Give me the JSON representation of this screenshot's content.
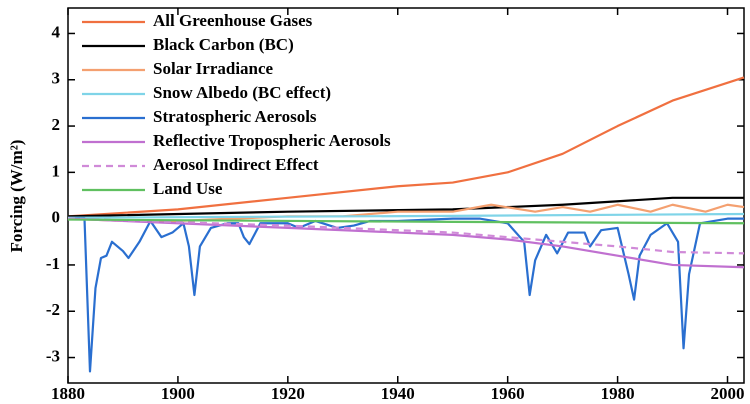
{
  "chart_data": {
    "type": "line",
    "y_label": "Forcing (W/m²)",
    "xlim": [
      1880,
      2003
    ],
    "xticks": [
      1880,
      1900,
      1920,
      1940,
      1960,
      1980,
      2000
    ],
    "ylim": [
      -3.55,
      4.55
    ],
    "yticks": [
      -3,
      -2,
      -1,
      0,
      1,
      2,
      3,
      4
    ],
    "legend": "upper left",
    "series": [
      {
        "name": "All Greenhouse Gases",
        "color": "#f07040",
        "dashed": false,
        "x": [
          1880,
          1900,
          1920,
          1940,
          1950,
          1960,
          1970,
          1980,
          1990,
          2003
        ],
        "values": [
          0.05,
          0.2,
          0.45,
          0.7,
          0.78,
          1.0,
          1.4,
          2.0,
          2.55,
          3.05
        ]
      },
      {
        "name": "Black Carbon (BC)",
        "color": "#000000",
        "dashed": false,
        "x": [
          1880,
          1920,
          1950,
          1970,
          1990,
          2003
        ],
        "values": [
          0.05,
          0.15,
          0.2,
          0.3,
          0.45,
          0.45
        ]
      },
      {
        "name": "Solar Irradiance",
        "color": "#f4a070",
        "dashed": false,
        "x": [
          1880,
          1890,
          1900,
          1910,
          1920,
          1930,
          1940,
          1950,
          1957,
          1965,
          1970,
          1975,
          1980,
          1986,
          1990,
          1996,
          2000,
          2003
        ],
        "values": [
          0.0,
          -0.05,
          -0.05,
          0.0,
          0.05,
          0.05,
          0.15,
          0.15,
          0.3,
          0.15,
          0.25,
          0.15,
          0.3,
          0.15,
          0.3,
          0.15,
          0.3,
          0.25
        ]
      },
      {
        "name": "Snow Albedo (BC effect)",
        "color": "#7fd4e8",
        "dashed": false,
        "x": [
          1880,
          1950,
          2003
        ],
        "values": [
          0.02,
          0.06,
          0.1
        ]
      },
      {
        "name": "Stratospheric Aerosols",
        "color": "#2a6fd0",
        "dashed": false,
        "x": [
          1880,
          1883,
          1884,
          1885,
          1886,
          1887,
          1888,
          1890,
          1891,
          1893,
          1895,
          1897,
          1899,
          1901,
          1902,
          1903,
          1904,
          1906,
          1909,
          1911,
          1912,
          1913,
          1915,
          1920,
          1922,
          1925,
          1929,
          1932,
          1935,
          1940,
          1950,
          1955,
          1960,
          1963,
          1964,
          1965,
          1967,
          1969,
          1971,
          1974,
          1975,
          1977,
          1980,
          1982,
          1983,
          1984,
          1986,
          1989,
          1991,
          1992,
          1993,
          1995,
          2000,
          2003
        ],
        "values": [
          0,
          0,
          -3.3,
          -1.5,
          -0.85,
          -0.8,
          -0.5,
          -0.7,
          -0.85,
          -0.5,
          -0.05,
          -0.4,
          -0.3,
          -0.1,
          -0.6,
          -1.65,
          -0.6,
          -0.2,
          -0.1,
          -0.1,
          -0.4,
          -0.55,
          -0.1,
          -0.1,
          -0.2,
          -0.05,
          -0.2,
          -0.15,
          -0.05,
          -0.05,
          0,
          0,
          -0.1,
          -0.5,
          -1.65,
          -0.9,
          -0.35,
          -0.75,
          -0.3,
          -0.3,
          -0.6,
          -0.25,
          -0.2,
          -1.2,
          -1.75,
          -0.8,
          -0.35,
          -0.1,
          -0.5,
          -2.8,
          -1.2,
          -0.1,
          0,
          0
        ]
      },
      {
        "name": "Reflective Tropospheric Aerosols",
        "color": "#c070d0",
        "dashed": false,
        "x": [
          1880,
          1900,
          1920,
          1940,
          1950,
          1960,
          1970,
          1980,
          1990,
          2003
        ],
        "values": [
          0,
          -0.1,
          -0.2,
          -0.3,
          -0.35,
          -0.45,
          -0.6,
          -0.8,
          -1.0,
          -1.05
        ]
      },
      {
        "name": "Aerosol Indirect Effect",
        "color": "#d08ad8",
        "dashed": true,
        "x": [
          1880,
          1920,
          1950,
          1960,
          1970,
          1980,
          1990,
          2003
        ],
        "values": [
          0,
          -0.15,
          -0.3,
          -0.4,
          -0.5,
          -0.6,
          -0.72,
          -0.75
        ]
      },
      {
        "name": "Land Use",
        "color": "#60c060",
        "dashed": false,
        "x": [
          1880,
          1950,
          2003
        ],
        "values": [
          -0.02,
          -0.07,
          -0.1
        ]
      }
    ]
  }
}
